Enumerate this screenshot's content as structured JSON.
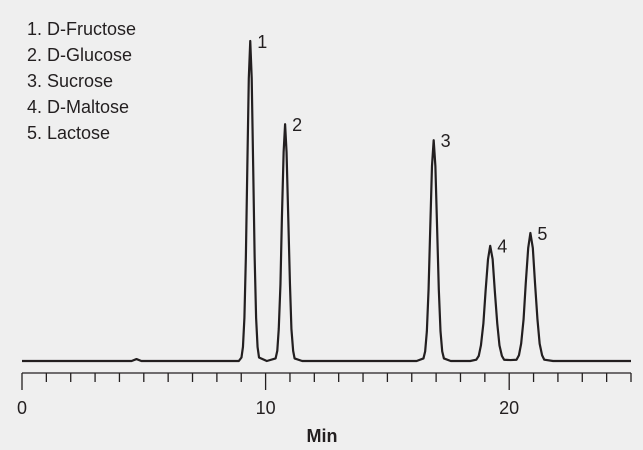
{
  "chart_data": {
    "type": "line",
    "x_label": "Min",
    "legend": [
      "1. D-Fructose",
      "2. D-Glucose",
      "3. Sucrose",
      "4. D-Maltose",
      "5. Lactose"
    ],
    "xlim": [
      0,
      25
    ],
    "xticks": [
      0,
      10,
      20
    ],
    "xminorticks": [
      1,
      2,
      3,
      4,
      5,
      6,
      7,
      8,
      9,
      11,
      12,
      13,
      14,
      15,
      16,
      17,
      18,
      19,
      21,
      22,
      23,
      24,
      25
    ],
    "ylim": [
      0,
      100
    ],
    "color": "#231f20",
    "peaks": [
      {
        "label": "1",
        "time": 9.37,
        "height": 100
      },
      {
        "label": "2",
        "time": 10.8,
        "height": 74
      },
      {
        "label": "3",
        "time": 16.9,
        "height": 69
      },
      {
        "label": "4",
        "time": 19.22,
        "height": 36
      },
      {
        "label": "5",
        "time": 20.87,
        "height": 40
      }
    ],
    "series": [
      {
        "x": [
          0,
          4.5,
          4.7,
          4.9,
          8.9,
          9.01,
          9.07,
          9.13,
          9.19,
          9.25,
          9.31,
          9.37,
          9.43,
          9.49,
          9.55,
          9.61,
          9.67,
          9.73,
          10.05,
          10.41,
          10.48,
          10.54,
          10.61,
          10.67,
          10.74,
          10.8,
          10.86,
          10.93,
          11,
          11.06,
          11.13,
          11.19,
          11.5,
          16.2,
          16.48,
          16.55,
          16.62,
          16.69,
          16.76,
          16.83,
          16.9,
          16.97,
          17.04,
          17.11,
          17.18,
          17.25,
          17.32,
          17.6,
          18.4,
          18.65,
          18.75,
          18.84,
          18.94,
          19.03,
          19.13,
          19.22,
          19.32,
          19.41,
          19.51,
          19.6,
          19.7,
          19.79,
          20.05,
          20.3,
          20.4,
          20.49,
          20.59,
          20.68,
          20.78,
          20.87,
          20.97,
          21.06,
          21.16,
          21.25,
          21.35,
          21.44,
          21.8,
          25
        ],
        "values": [
          0,
          0,
          0.6,
          0,
          0,
          1.1,
          4.4,
          13.5,
          32.5,
          60.7,
          88.3,
          100,
          88.3,
          60.7,
          32.5,
          13.5,
          4.4,
          1.1,
          0,
          0.8,
          3.2,
          10,
          24,
          44.9,
          65.3,
          74,
          65.3,
          44.9,
          24,
          10,
          3.2,
          0.8,
          0,
          0,
          0.8,
          3,
          9.3,
          22.4,
          41.8,
          60.9,
          69,
          60.9,
          41.8,
          22.4,
          9.3,
          3,
          0.8,
          0,
          0,
          0.4,
          1.6,
          4.9,
          11.7,
          21.8,
          31.8,
          36,
          31.8,
          21.8,
          11.7,
          4.9,
          1.6,
          0.4,
          0.3,
          0.4,
          1.8,
          5.4,
          13,
          24.3,
          35.3,
          40,
          35.3,
          24.3,
          13,
          5.4,
          1.8,
          0.4,
          0,
          0
        ]
      }
    ]
  }
}
